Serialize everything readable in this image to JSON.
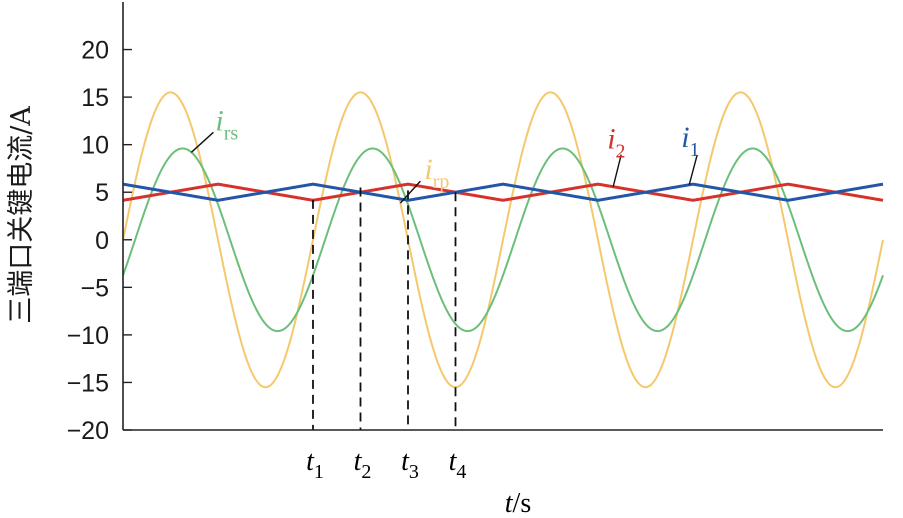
{
  "chart_data": {
    "type": "line",
    "ylabel": "三端口关键电流/A",
    "xlabel_var": "t",
    "xlabel_unit": "/s",
    "ylim": [
      -20,
      25
    ],
    "yticks": [
      20,
      15,
      10,
      5,
      0,
      -5,
      -10,
      -15,
      -20
    ],
    "xlim": [
      0,
      1
    ],
    "grid": false,
    "series": [
      {
        "name": "i_rp",
        "label_main": "i",
        "label_sub": "rp",
        "color": "#f5c86e",
        "shape": "sine",
        "amplitude": 15.5,
        "offset": 0,
        "period": 0.25,
        "phase": 0.0
      },
      {
        "name": "i_rs",
        "label_main": "i",
        "label_sub": "rs",
        "color": "#6cbf7a",
        "shape": "sine",
        "amplitude": 9.6,
        "offset": 0,
        "period": 0.25,
        "phase": -0.4
      },
      {
        "name": "i_2",
        "label_main": "i",
        "label_sub": "2",
        "color": "#d6322b",
        "shape": "triangle",
        "offset": 5,
        "amplitude": 0.85,
        "period": 0.25,
        "peak_start": -0.85
      },
      {
        "name": "i_1",
        "label_main": "i",
        "label_sub": "1",
        "color": "#2456a8",
        "shape": "triangle",
        "offset": 5,
        "amplitude": 0.85,
        "period": 0.25,
        "peak_start": 0.85
      }
    ],
    "markers": [
      {
        "main": "t",
        "sub": "1",
        "x": 0.25,
        "y_top": 4.2
      },
      {
        "main": "t",
        "sub": "2",
        "x": 0.3125,
        "y_top": 5.5
      },
      {
        "main": "t",
        "sub": "3",
        "x": 0.375,
        "y_top": 5.2
      },
      {
        "main": "t",
        "sub": "4",
        "x": 0.4375,
        "y_top": 5.0
      }
    ],
    "annotations": [
      {
        "series": "i_rs",
        "main": "i",
        "sub": "rs",
        "at_x": 0.09,
        "color": "#6cbf7a"
      },
      {
        "series": "i_rp",
        "main": "i",
        "sub": "rp",
        "at_x": 0.365,
        "color": "#f5c86e"
      },
      {
        "series": "i_2",
        "main": "i",
        "sub": "2",
        "at_x": 0.645,
        "color": "#d6322b"
      },
      {
        "series": "i_1",
        "main": "i",
        "sub": "1",
        "at_x": 0.745,
        "color": "#2456a8"
      }
    ]
  }
}
